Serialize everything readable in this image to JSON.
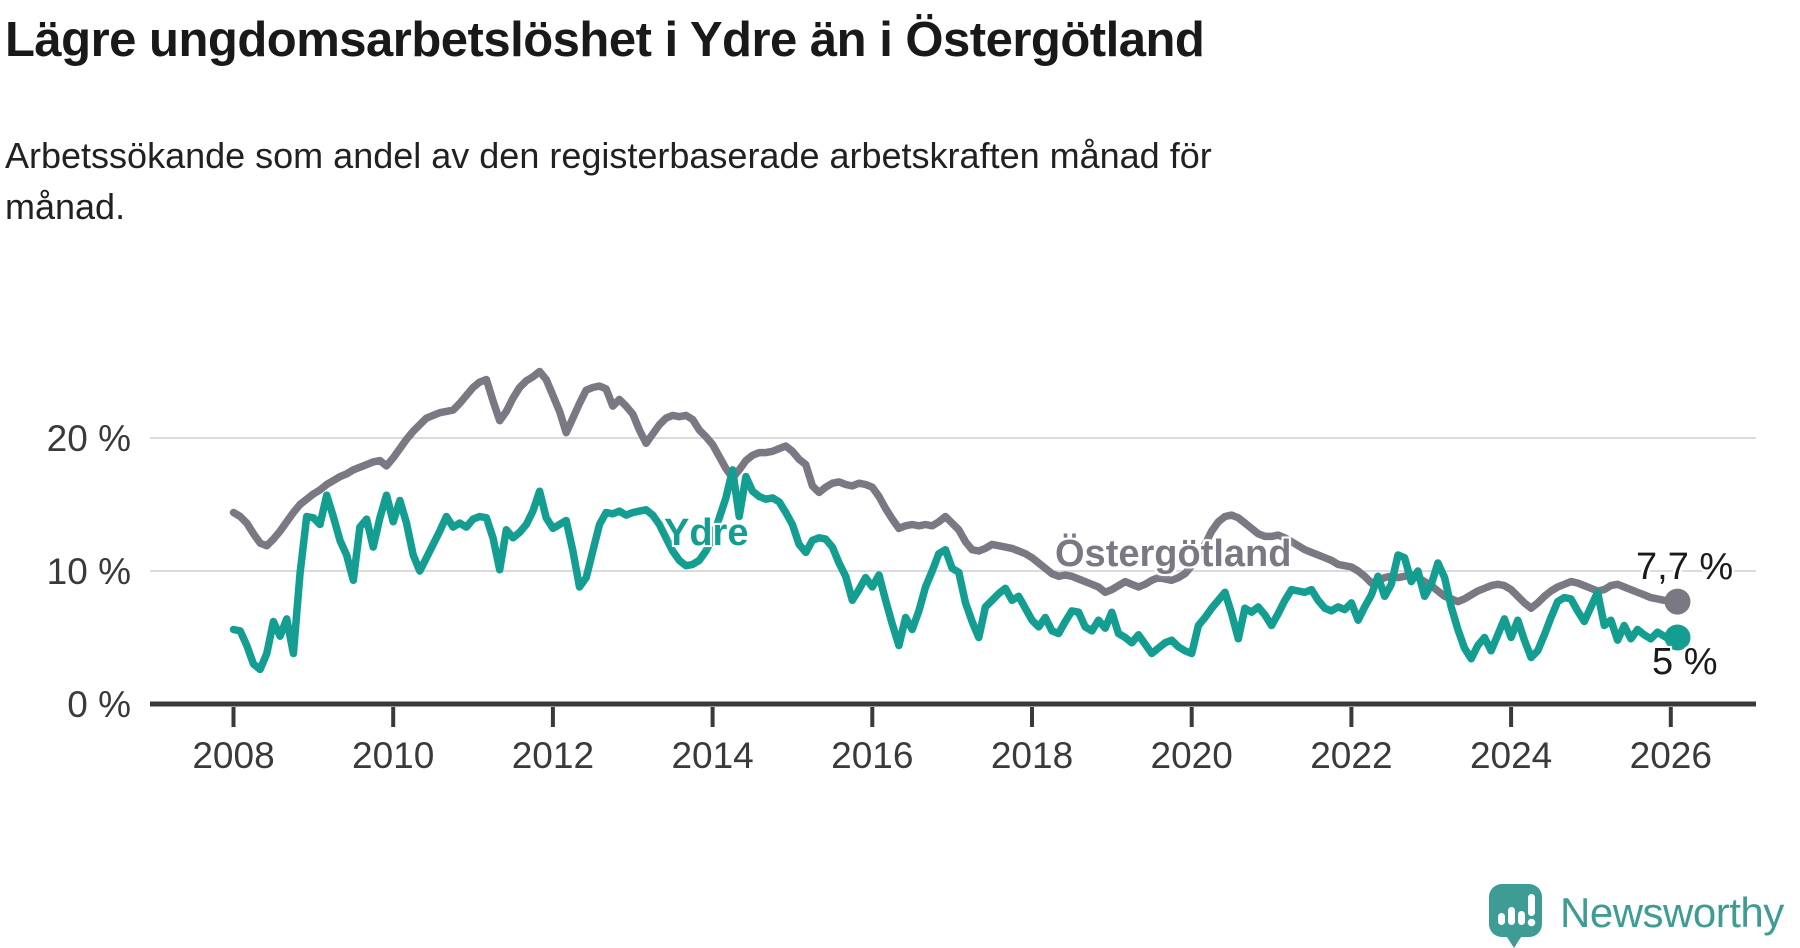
{
  "chart_data": {
    "type": "line",
    "title": "Lägre ungdomsarbetslöshet i Ydre än i Östergötland",
    "subtitle": "Arbetssökande som andel av den registerbaserade arbetskraften månad för månad.",
    "x_unit": "month",
    "x_range": "2008-01 to 2026-02",
    "x_tick_labels": [
      "2008",
      "2010",
      "2012",
      "2014",
      "2016",
      "2018",
      "2020",
      "2022",
      "2024",
      "2026"
    ],
    "y_ticks": [
      {
        "value": 20,
        "label": "20 %"
      },
      {
        "value": 10,
        "label": "10 %"
      },
      {
        "value": 0,
        "label": "0 %"
      }
    ],
    "ylim": [
      0,
      26
    ],
    "grid": "horizontal",
    "legend_position": "inline-labels",
    "series": [
      {
        "name": "Östergötland",
        "color": "#7a7983",
        "end_label": "7,7 %",
        "last_value": 7.7,
        "values": [
          14.4,
          14.1,
          13.6,
          12.8,
          12.1,
          11.9,
          12.4,
          13.0,
          13.7,
          14.4,
          15.0,
          15.4,
          15.8,
          16.1,
          16.5,
          16.8,
          17.1,
          17.3,
          17.6,
          17.8,
          18.0,
          18.2,
          18.3,
          17.9,
          18.5,
          19.2,
          19.9,
          20.5,
          21.0,
          21.5,
          21.7,
          21.9,
          22.0,
          22.1,
          22.6,
          23.2,
          23.8,
          24.2,
          24.4,
          22.8,
          21.3,
          22.0,
          23.0,
          23.8,
          24.3,
          24.6,
          25.0,
          24.4,
          23.2,
          22.0,
          20.4,
          21.5,
          22.6,
          23.6,
          23.8,
          23.9,
          23.7,
          22.4,
          22.9,
          22.4,
          21.8,
          20.6,
          19.6,
          20.3,
          21.0,
          21.5,
          21.7,
          21.6,
          21.7,
          21.4,
          20.6,
          20.1,
          19.5,
          18.6,
          17.7,
          17.0,
          17.6,
          18.3,
          18.7,
          18.9,
          18.9,
          19.0,
          19.2,
          19.4,
          19.0,
          18.4,
          18.0,
          16.4,
          15.9,
          16.3,
          16.6,
          16.7,
          16.5,
          16.4,
          16.6,
          16.5,
          16.3,
          15.6,
          14.7,
          13.9,
          13.2,
          13.4,
          13.5,
          13.4,
          13.5,
          13.4,
          13.7,
          14.1,
          13.6,
          13.1,
          12.2,
          11.6,
          11.5,
          11.7,
          12.0,
          11.9,
          11.8,
          11.7,
          11.5,
          11.3,
          11.0,
          10.6,
          10.2,
          9.8,
          9.6,
          9.7,
          9.6,
          9.4,
          9.2,
          9.0,
          8.8,
          8.4,
          8.6,
          8.9,
          9.2,
          9.0,
          8.8,
          9.0,
          9.3,
          9.5,
          9.4,
          9.3,
          9.5,
          9.8,
          10.4,
          11.2,
          12.0,
          13.0,
          13.7,
          14.1,
          14.2,
          14.0,
          13.6,
          13.2,
          12.8,
          12.6,
          12.6,
          12.7,
          12.5,
          12.2,
          11.9,
          11.6,
          11.4,
          11.2,
          11.0,
          10.8,
          10.5,
          10.4,
          10.3,
          10.0,
          9.6,
          9.1,
          9.3,
          9.5,
          9.6,
          9.5,
          9.6,
          9.7,
          9.5,
          9.2,
          8.9,
          8.5,
          8.1,
          7.9,
          7.7,
          7.9,
          8.2,
          8.5,
          8.7,
          8.9,
          9.0,
          8.9,
          8.6,
          8.1,
          7.6,
          7.2,
          7.6,
          8.1,
          8.5,
          8.8,
          9.0,
          9.2,
          9.1,
          8.9,
          8.7,
          8.5,
          8.6,
          8.9,
          9.0,
          8.8,
          8.6,
          8.4,
          8.2,
          8.0,
          7.9,
          7.8,
          7.8,
          7.7
        ]
      },
      {
        "name": "Ydre",
        "color": "#149e91",
        "end_label": "5 %",
        "last_value": 5.0,
        "values": [
          5.6,
          5.5,
          4.4,
          3.0,
          2.6,
          3.8,
          6.2,
          5.1,
          6.4,
          3.8,
          9.8,
          14.1,
          14.0,
          13.5,
          15.7,
          14.1,
          12.3,
          11.2,
          9.3,
          13.3,
          13.9,
          11.8,
          14.0,
          15.7,
          13.7,
          15.3,
          13.6,
          11.2,
          10.0,
          11.0,
          12.0,
          13.0,
          14.1,
          13.3,
          13.6,
          13.3,
          13.9,
          14.1,
          14.0,
          12.5,
          10.1,
          13.1,
          12.5,
          12.9,
          13.5,
          14.5,
          16.0,
          14.0,
          13.2,
          13.5,
          13.8,
          11.5,
          8.8,
          9.5,
          11.5,
          13.5,
          14.4,
          14.3,
          14.5,
          14.2,
          14.4,
          14.5,
          14.6,
          14.2,
          13.5,
          12.5,
          11.5,
          10.8,
          10.4,
          10.5,
          10.8,
          11.5,
          12.5,
          14.0,
          15.5,
          17.6,
          14.1,
          17.1,
          16.0,
          15.6,
          15.4,
          15.5,
          15.2,
          14.4,
          13.5,
          12.0,
          11.4,
          12.3,
          12.5,
          12.4,
          11.8,
          10.6,
          9.6,
          7.8,
          8.6,
          9.5,
          8.8,
          9.7,
          7.8,
          6.0,
          4.4,
          6.5,
          5.6,
          7.0,
          8.8,
          10.0,
          11.3,
          11.6,
          10.2,
          9.9,
          7.6,
          6.2,
          5.0,
          7.3,
          7.8,
          8.3,
          8.7,
          7.8,
          8.1,
          7.2,
          6.3,
          5.8,
          6.5,
          5.5,
          5.3,
          6.2,
          7.0,
          6.9,
          5.8,
          5.5,
          6.3,
          5.7,
          6.9,
          5.3,
          5.0,
          4.6,
          5.2,
          4.5,
          3.8,
          4.2,
          4.6,
          4.8,
          4.3,
          4.0,
          3.8,
          5.9,
          6.5,
          7.2,
          7.8,
          8.4,
          6.8,
          4.9,
          7.2,
          6.9,
          7.3,
          6.7,
          5.9,
          6.8,
          7.8,
          8.6,
          8.5,
          8.4,
          8.6,
          7.8,
          7.2,
          7.0,
          7.3,
          7.1,
          7.6,
          6.3,
          7.3,
          8.2,
          9.6,
          8.1,
          9.0,
          11.2,
          11.0,
          9.2,
          10.0,
          8.1,
          9.0,
          10.6,
          9.5,
          7.3,
          5.6,
          4.2,
          3.4,
          4.4,
          5.0,
          4.0,
          5.2,
          6.4,
          5.0,
          6.3,
          4.8,
          3.5,
          4.0,
          5.2,
          6.5,
          7.7,
          8.0,
          7.9,
          7.0,
          6.2,
          7.3,
          8.4,
          5.9,
          6.3,
          4.8,
          5.9,
          4.9,
          5.6,
          5.2,
          4.9,
          5.4,
          5.1,
          4.8,
          5.0
        ]
      }
    ]
  },
  "footer": {
    "logo_text": "Newsworthy",
    "logo_icon": "newsworthy-speech-bubble-bar-chart",
    "brand_color": "#3e9c94"
  }
}
